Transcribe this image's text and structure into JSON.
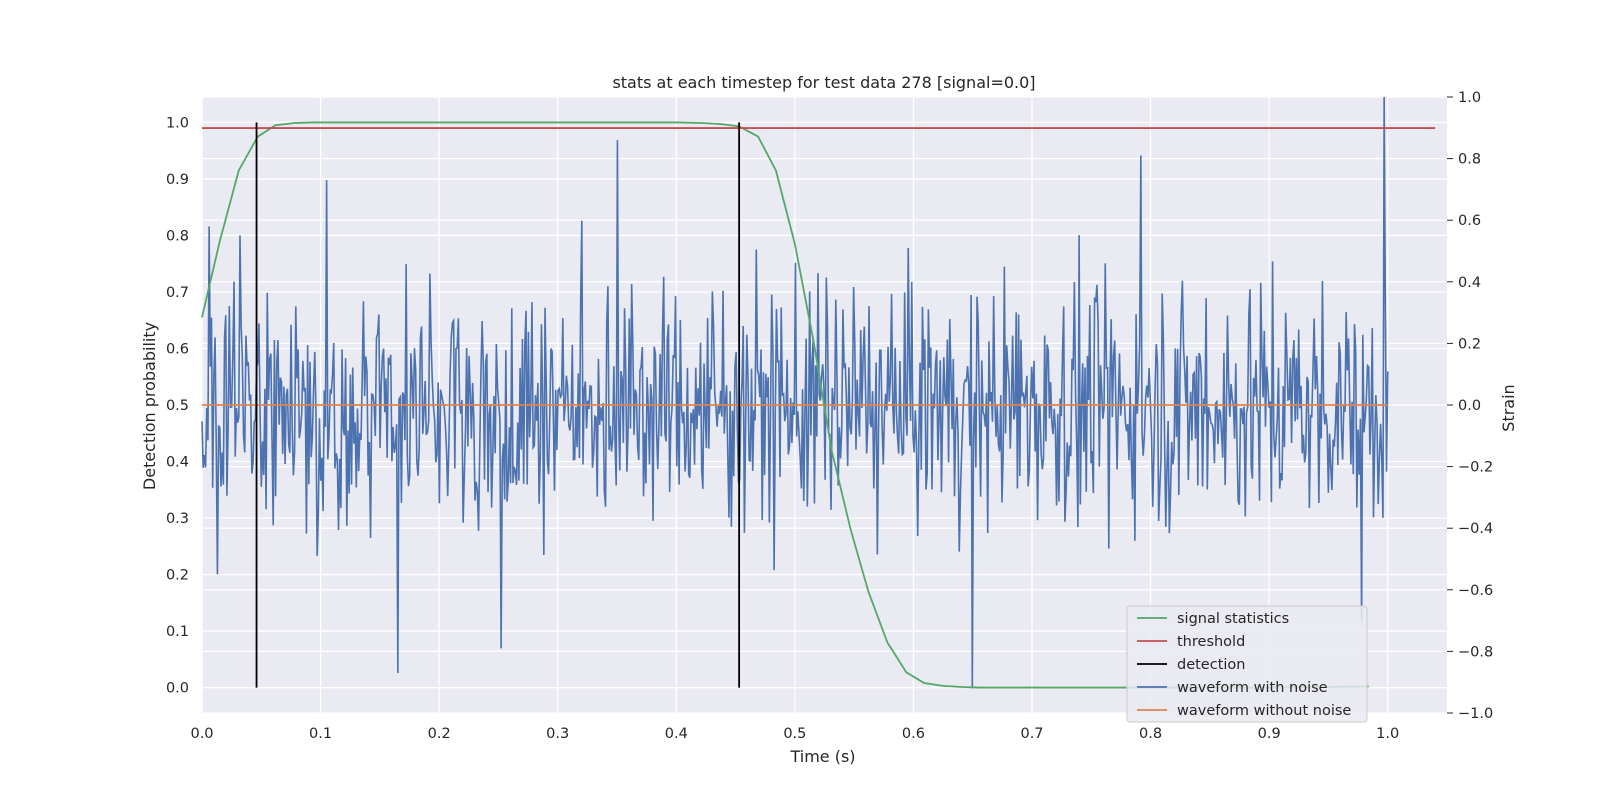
{
  "chart_data": {
    "type": "line",
    "title": "stats at each timestep for test data 278 [signal=0.0]",
    "xlabel": "Time (s)",
    "ylabel_left": "Detection probability",
    "ylabel_right": "Strain",
    "xlim": [
      0.0,
      1.05
    ],
    "ylim_left": [
      -0.045,
      1.045
    ],
    "ylim_right": [
      -1.0,
      1.0
    ],
    "x_ticks": [
      "0.0",
      "0.1",
      "0.2",
      "0.3",
      "0.4",
      "0.5",
      "0.6",
      "0.7",
      "0.8",
      "0.9",
      "1.0"
    ],
    "y_ticks_left": [
      "0.0",
      "0.1",
      "0.2",
      "0.3",
      "0.4",
      "0.5",
      "0.6",
      "0.7",
      "0.8",
      "0.9",
      "1.0"
    ],
    "y_ticks_right": [
      "−1.0",
      "−0.8",
      "−0.6",
      "−0.4",
      "−0.2",
      "0.0",
      "0.2",
      "0.4",
      "0.6",
      "0.8",
      "1.0"
    ],
    "grid": true,
    "legend_position": "bottom-right",
    "series": [
      {
        "name": "signal statistics",
        "axis": "left",
        "color": "#55a868",
        "x": [
          0.0,
          0.015,
          0.031,
          0.047,
          0.062,
          0.078,
          0.094,
          0.109,
          0.125,
          0.2,
          0.3,
          0.4,
          0.422,
          0.438,
          0.453,
          0.469,
          0.484,
          0.5,
          0.516,
          0.531,
          0.547,
          0.562,
          0.578,
          0.594,
          0.609,
          0.625,
          0.641,
          0.656,
          0.7,
          0.8,
          0.9,
          0.984
        ],
        "y": [
          0.655,
          0.79,
          0.915,
          0.975,
          0.995,
          0.999,
          1.0,
          1.0,
          1.0,
          1.0,
          1.0,
          1.0,
          0.999,
          0.997,
          0.993,
          0.975,
          0.915,
          0.785,
          0.61,
          0.42,
          0.28,
          0.17,
          0.08,
          0.027,
          0.008,
          0.003,
          0.001,
          0.0,
          0.0,
          0.0,
          0.0,
          0.002
        ]
      },
      {
        "name": "threshold",
        "axis": "left",
        "color": "#c44e52",
        "x": [
          0.0,
          1.04
        ],
        "y": [
          0.99,
          0.99
        ]
      },
      {
        "name": "detection",
        "axis": "left",
        "color": "#000000",
        "segments": [
          {
            "x": 0.046,
            "y0": 0.0,
            "y1": 1.0
          },
          {
            "x": 0.453,
            "y0": 0.0,
            "y1": 1.0
          }
        ]
      },
      {
        "name": "waveform with noise",
        "axis": "right",
        "color": "#4c72b0",
        "x_range": [
          0.0,
          1.0
        ],
        "sample_count": 1000,
        "amplitude_hint": "noise within approx -0.9 to 1.0 strain, peak 1.0 near t=0.997",
        "peaks": [
          {
            "x": 0.006,
            "y": 0.58
          },
          {
            "x": 0.013,
            "y": -0.55
          },
          {
            "x": 0.105,
            "y": 0.73
          },
          {
            "x": 0.165,
            "y": -0.87
          },
          {
            "x": 0.35,
            "y": 0.86
          },
          {
            "x": 0.252,
            "y": -0.79
          },
          {
            "x": 0.65,
            "y": -0.92
          },
          {
            "x": 0.792,
            "y": 0.81
          },
          {
            "x": 0.978,
            "y": -0.7
          },
          {
            "x": 0.997,
            "y": 1.0
          }
        ]
      },
      {
        "name": "waveform without noise",
        "axis": "right",
        "color": "#dd8452",
        "x": [
          0.0,
          1.0
        ],
        "y": [
          0.0,
          0.0
        ]
      }
    ]
  }
}
